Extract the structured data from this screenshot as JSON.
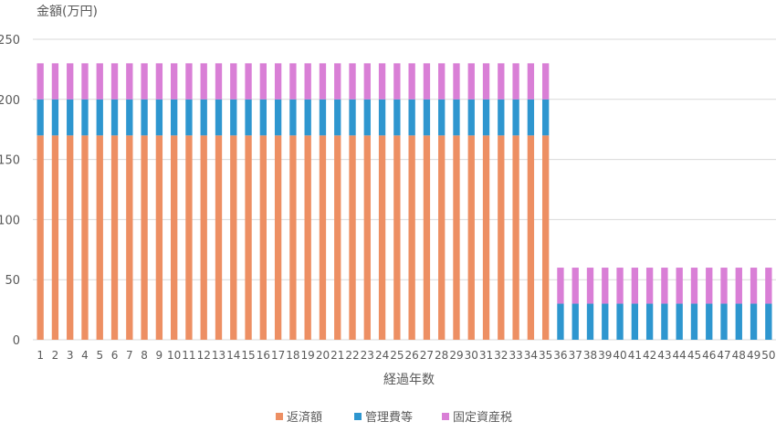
{
  "chart_data": {
    "type": "bar",
    "stacked": true,
    "ylabel": "金額(万円)",
    "xlabel": "経過年数",
    "ylim": [
      0,
      250
    ],
    "yticks": [
      0,
      50,
      100,
      150,
      200,
      250
    ],
    "grid": true,
    "legend_position": "bottom",
    "categories": [
      "1",
      "2",
      "3",
      "4",
      "5",
      "6",
      "7",
      "8",
      "9",
      "10",
      "11",
      "12",
      "13",
      "14",
      "15",
      "16",
      "17",
      "18",
      "19",
      "20",
      "21",
      "22",
      "23",
      "24",
      "25",
      "26",
      "27",
      "28",
      "29",
      "30",
      "31",
      "32",
      "33",
      "34",
      "35",
      "36",
      "37",
      "38",
      "39",
      "40",
      "41",
      "42",
      "43",
      "44",
      "45",
      "46",
      "47",
      "48",
      "49",
      "50"
    ],
    "series": [
      {
        "name": "返済額",
        "color": "#ed8f63",
        "values": [
          170,
          170,
          170,
          170,
          170,
          170,
          170,
          170,
          170,
          170,
          170,
          170,
          170,
          170,
          170,
          170,
          170,
          170,
          170,
          170,
          170,
          170,
          170,
          170,
          170,
          170,
          170,
          170,
          170,
          170,
          170,
          170,
          170,
          170,
          170,
          0,
          0,
          0,
          0,
          0,
          0,
          0,
          0,
          0,
          0,
          0,
          0,
          0,
          0,
          0
        ]
      },
      {
        "name": "管理費等",
        "color": "#2e96cf",
        "values": [
          30,
          30,
          30,
          30,
          30,
          30,
          30,
          30,
          30,
          30,
          30,
          30,
          30,
          30,
          30,
          30,
          30,
          30,
          30,
          30,
          30,
          30,
          30,
          30,
          30,
          30,
          30,
          30,
          30,
          30,
          30,
          30,
          30,
          30,
          30,
          30,
          30,
          30,
          30,
          30,
          30,
          30,
          30,
          30,
          30,
          30,
          30,
          30,
          30,
          30
        ]
      },
      {
        "name": "固定資産税",
        "color": "#d97fd6",
        "values": [
          30,
          30,
          30,
          30,
          30,
          30,
          30,
          30,
          30,
          30,
          30,
          30,
          30,
          30,
          30,
          30,
          30,
          30,
          30,
          30,
          30,
          30,
          30,
          30,
          30,
          30,
          30,
          30,
          30,
          30,
          30,
          30,
          30,
          30,
          30,
          30,
          30,
          30,
          30,
          30,
          30,
          30,
          30,
          30,
          30,
          30,
          30,
          30,
          30,
          30
        ]
      }
    ]
  },
  "colors": {
    "grid": "#d9d9d9",
    "text": "#595959",
    "background": "#ffffff"
  }
}
